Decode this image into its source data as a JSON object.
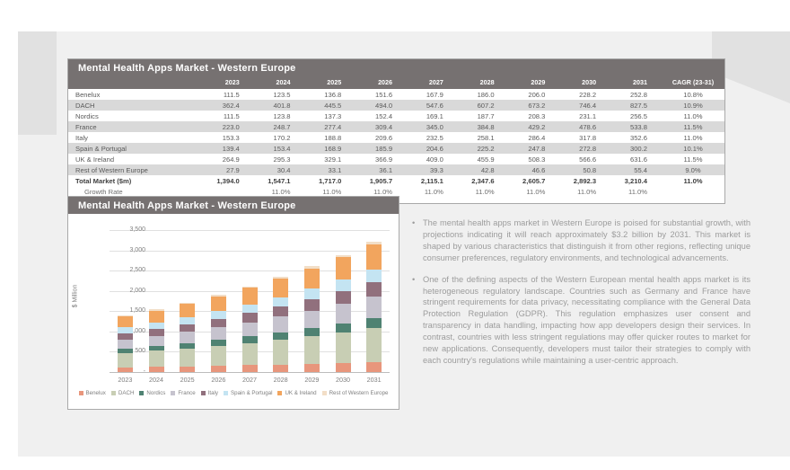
{
  "table": {
    "title": "Mental Health Apps Market - Western Europe",
    "corner": "",
    "year_headers": [
      "2023",
      "2024",
      "2025",
      "2026",
      "2027",
      "2028",
      "2029",
      "2030",
      "2031"
    ],
    "cagr_header": "CAGR (23-31)",
    "rows": [
      {
        "label": "Benelux",
        "values": [
          "111.5",
          "123.5",
          "136.8",
          "151.6",
          "167.9",
          "186.0",
          "206.0",
          "228.2",
          "252.8"
        ],
        "cagr": "10.8%"
      },
      {
        "label": "DACH",
        "values": [
          "362.4",
          "401.8",
          "445.5",
          "494.0",
          "547.6",
          "607.2",
          "673.2",
          "746.4",
          "827.5"
        ],
        "cagr": "10.9%"
      },
      {
        "label": "Nordics",
        "values": [
          "111.5",
          "123.8",
          "137.3",
          "152.4",
          "169.1",
          "187.7",
          "208.3",
          "231.1",
          "256.5"
        ],
        "cagr": "11.0%"
      },
      {
        "label": "France",
        "values": [
          "223.0",
          "248.7",
          "277.4",
          "309.4",
          "345.0",
          "384.8",
          "429.2",
          "478.6",
          "533.8"
        ],
        "cagr": "11.5%"
      },
      {
        "label": "Italy",
        "values": [
          "153.3",
          "170.2",
          "188.8",
          "209.6",
          "232.5",
          "258.1",
          "286.4",
          "317.8",
          "352.6"
        ],
        "cagr": "11.0%"
      },
      {
        "label": "Spain & Portugal",
        "values": [
          "139.4",
          "153.4",
          "168.9",
          "185.9",
          "204.6",
          "225.2",
          "247.8",
          "272.8",
          "300.2"
        ],
        "cagr": "10.1%"
      },
      {
        "label": "UK & Ireland",
        "values": [
          "264.9",
          "295.3",
          "329.1",
          "366.9",
          "409.0",
          "455.9",
          "508.3",
          "566.6",
          "631.6"
        ],
        "cagr": "11.5%"
      },
      {
        "label": "Rest of Western Europe",
        "values": [
          "27.9",
          "30.4",
          "33.1",
          "36.1",
          "39.3",
          "42.8",
          "46.6",
          "50.8",
          "55.4"
        ],
        "cagr": "9.0%"
      }
    ],
    "total_row": {
      "label": "Total Market ($m)",
      "values": [
        "1,394.0",
        "1,547.1",
        "1,717.0",
        "1,905.7",
        "2,115.1",
        "2,347.6",
        "2,605.7",
        "2,892.3",
        "3,210.4"
      ],
      "cagr": "11.0%"
    },
    "growth_row": {
      "label": "Growth Rate",
      "values": [
        "",
        "11.0%",
        "11.0%",
        "11.0%",
        "11.0%",
        "11.0%",
        "11.0%",
        "11.0%",
        "11.0%"
      ],
      "cagr": ""
    }
  },
  "chart": {
    "title": "Mental Health Apps Market - Western Europe",
    "ylabel": "$ Million",
    "y_tick_values": [
      3500,
      3000,
      2500,
      2000,
      1500,
      1000,
      500,
      0
    ],
    "y_tick_labels": [
      "3,500",
      "3,000",
      "2,500",
      "2,000",
      "1,500",
      "1,000",
      "500",
      "-"
    ]
  },
  "chart_data": {
    "type": "bar",
    "stacked": true,
    "title": "Mental Health Apps Market - Western Europe",
    "xlabel": "",
    "ylabel": "$ Million",
    "ylim": [
      0,
      3500
    ],
    "grid": true,
    "legend_position": "bottom",
    "categories": [
      "2023",
      "2024",
      "2025",
      "2026",
      "2027",
      "2028",
      "2029",
      "2030",
      "2031"
    ],
    "series": [
      {
        "name": "Benelux",
        "color": "#E8967C",
        "values": [
          111.5,
          123.5,
          136.8,
          151.6,
          167.9,
          186.0,
          206.0,
          228.2,
          252.8
        ]
      },
      {
        "name": "DACH",
        "color": "#C8CEB4",
        "values": [
          362.4,
          401.8,
          445.5,
          494.0,
          547.6,
          607.2,
          673.2,
          746.4,
          827.5
        ]
      },
      {
        "name": "Nordics",
        "color": "#4F8272",
        "values": [
          111.5,
          123.8,
          137.3,
          152.4,
          169.1,
          187.7,
          208.3,
          231.1,
          256.5
        ]
      },
      {
        "name": "France",
        "color": "#C6C3CE",
        "values": [
          223.0,
          248.7,
          277.4,
          309.4,
          345.0,
          384.8,
          429.2,
          478.6,
          533.8
        ]
      },
      {
        "name": "Italy",
        "color": "#91707D",
        "values": [
          153.3,
          170.2,
          188.8,
          209.6,
          232.5,
          258.1,
          286.4,
          317.8,
          352.6
        ]
      },
      {
        "name": "Spain & Portugal",
        "color": "#C4E4F2",
        "values": [
          139.4,
          153.4,
          168.9,
          185.9,
          204.6,
          225.2,
          247.8,
          272.8,
          300.2
        ]
      },
      {
        "name": "UK & Ireland",
        "color": "#F2A55E",
        "values": [
          264.9,
          295.3,
          329.1,
          366.9,
          409.0,
          455.9,
          508.3,
          566.6,
          631.6
        ]
      },
      {
        "name": "Rest of Western Europe",
        "color": "#F2DEC7",
        "values": [
          27.9,
          30.4,
          33.1,
          36.1,
          39.3,
          42.8,
          46.6,
          50.8,
          55.4
        ]
      }
    ]
  },
  "bullet_char": "•",
  "bullets": [
    "The mental health apps market in Western Europe is poised for substantial growth, with projections indicating it will reach approximately $3.2 billion by 2031. This market is shaped by various characteristics that distinguish it from other regions, reflecting unique consumer preferences, regulatory environments, and technological advancements.",
    "One of the defining aspects of the Western European mental health apps market is its heterogeneous regulatory landscape. Countries such as Germany and France have stringent requirements for data privacy, necessitating compliance with the General Data Protection Regulation (GDPR). This regulation emphasizes user consent and transparency in data handling, impacting how app developers design their services. In contrast, countries with less stringent regulations may offer quicker routes to market for new applications. Consequently, developers must tailor their strategies to comply with each country's regulations while maintaining a user-centric approach."
  ]
}
